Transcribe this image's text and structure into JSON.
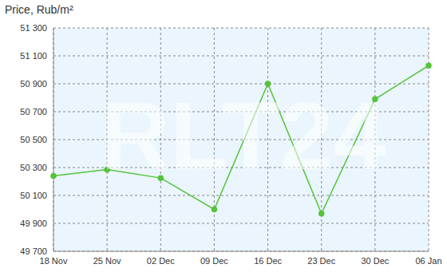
{
  "chart_data": {
    "type": "line",
    "title": "Price, Rub/m²",
    "annotations": [
      "RLT24"
    ],
    "categories": [
      "18 Nov",
      "25 Nov",
      "02 Dec",
      "09 Dec",
      "16 Dec",
      "23 Dec",
      "30 Dec",
      "06 Jan"
    ],
    "values": [
      50240,
      50285,
      50225,
      50000,
      50900,
      49970,
      50790,
      51030
    ],
    "color": "#55c43a",
    "marker": "circle",
    "ylim": [
      49700,
      51300
    ],
    "yticks": [
      {
        "value": 49700,
        "label": "49 700"
      },
      {
        "value": 49900,
        "label": "49 900"
      },
      {
        "value": 50100,
        "label": "50 100"
      },
      {
        "value": 50300,
        "label": "50 300"
      },
      {
        "value": 50500,
        "label": "50 500"
      },
      {
        "value": 50700,
        "label": "50 700"
      },
      {
        "value": 50900,
        "label": "50 900"
      },
      {
        "value": 51100,
        "label": "51 100"
      },
      {
        "value": 51300,
        "label": "51 300"
      }
    ],
    "grid": true
  }
}
